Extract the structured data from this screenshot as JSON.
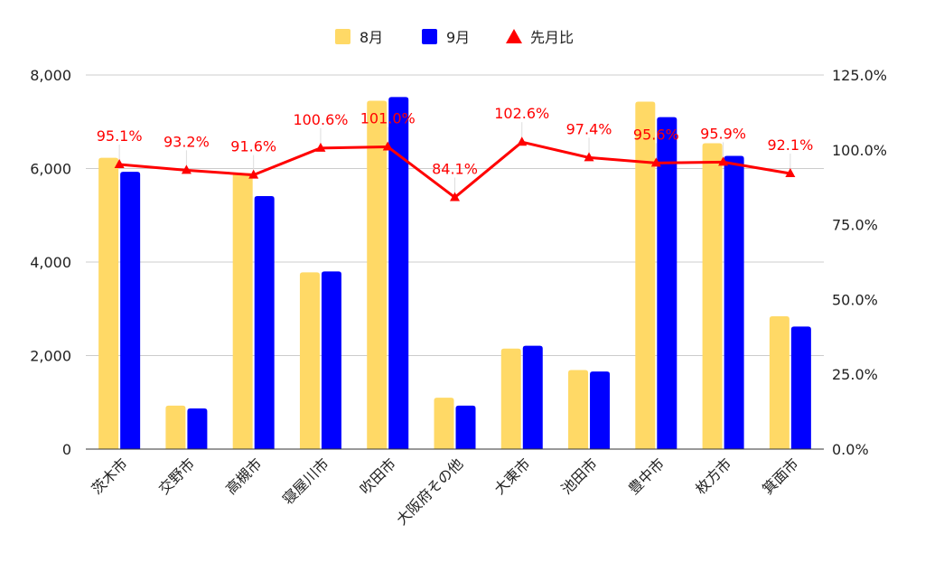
{
  "chart_data": {
    "type": "bar",
    "title": "",
    "categories": [
      "茨木市",
      "交野市",
      "高槻市",
      "寝屋川市",
      "吹田市",
      "大阪府その他",
      "大東市",
      "池田市",
      "豊中市",
      "枚方市",
      "箕面市"
    ],
    "series": [
      {
        "name": "8月",
        "type": "bar",
        "axis": "left",
        "color": "#FFD966",
        "values": [
          6230,
          930,
          5900,
          3780,
          7450,
          1100,
          2150,
          1690,
          7430,
          6540,
          2840
        ]
      },
      {
        "name": "9月",
        "type": "bar",
        "axis": "left",
        "color": "#0000FF",
        "values": [
          5930,
          870,
          5410,
          3800,
          7530,
          930,
          2210,
          1660,
          7100,
          6270,
          2620
        ]
      },
      {
        "name": "先月比",
        "type": "line",
        "axis": "right",
        "color": "#FF0000",
        "marker": "triangle",
        "values": [
          95.1,
          93.2,
          91.6,
          100.6,
          101.0,
          84.1,
          102.6,
          97.4,
          95.6,
          95.9,
          92.1
        ],
        "labels": [
          "95.1%",
          "93.2%",
          "91.6%",
          "100.6%",
          "101.0%",
          "84.1%",
          "102.6%",
          "97.4%",
          "95.6%",
          "95.9%",
          "92.1%"
        ]
      }
    ],
    "y_left": {
      "min": 0,
      "max": 8000,
      "ticks": [
        "0",
        "2,000",
        "4,000",
        "6,000",
        "8,000"
      ]
    },
    "y_right": {
      "min": 0,
      "max": 125,
      "ticks": [
        "0.0%",
        "25.0%",
        "50.0%",
        "75.0%",
        "100.0%",
        "125.0%"
      ]
    },
    "grid": true,
    "legend_position": "top-center",
    "xlabel": "",
    "ylabel": ""
  }
}
